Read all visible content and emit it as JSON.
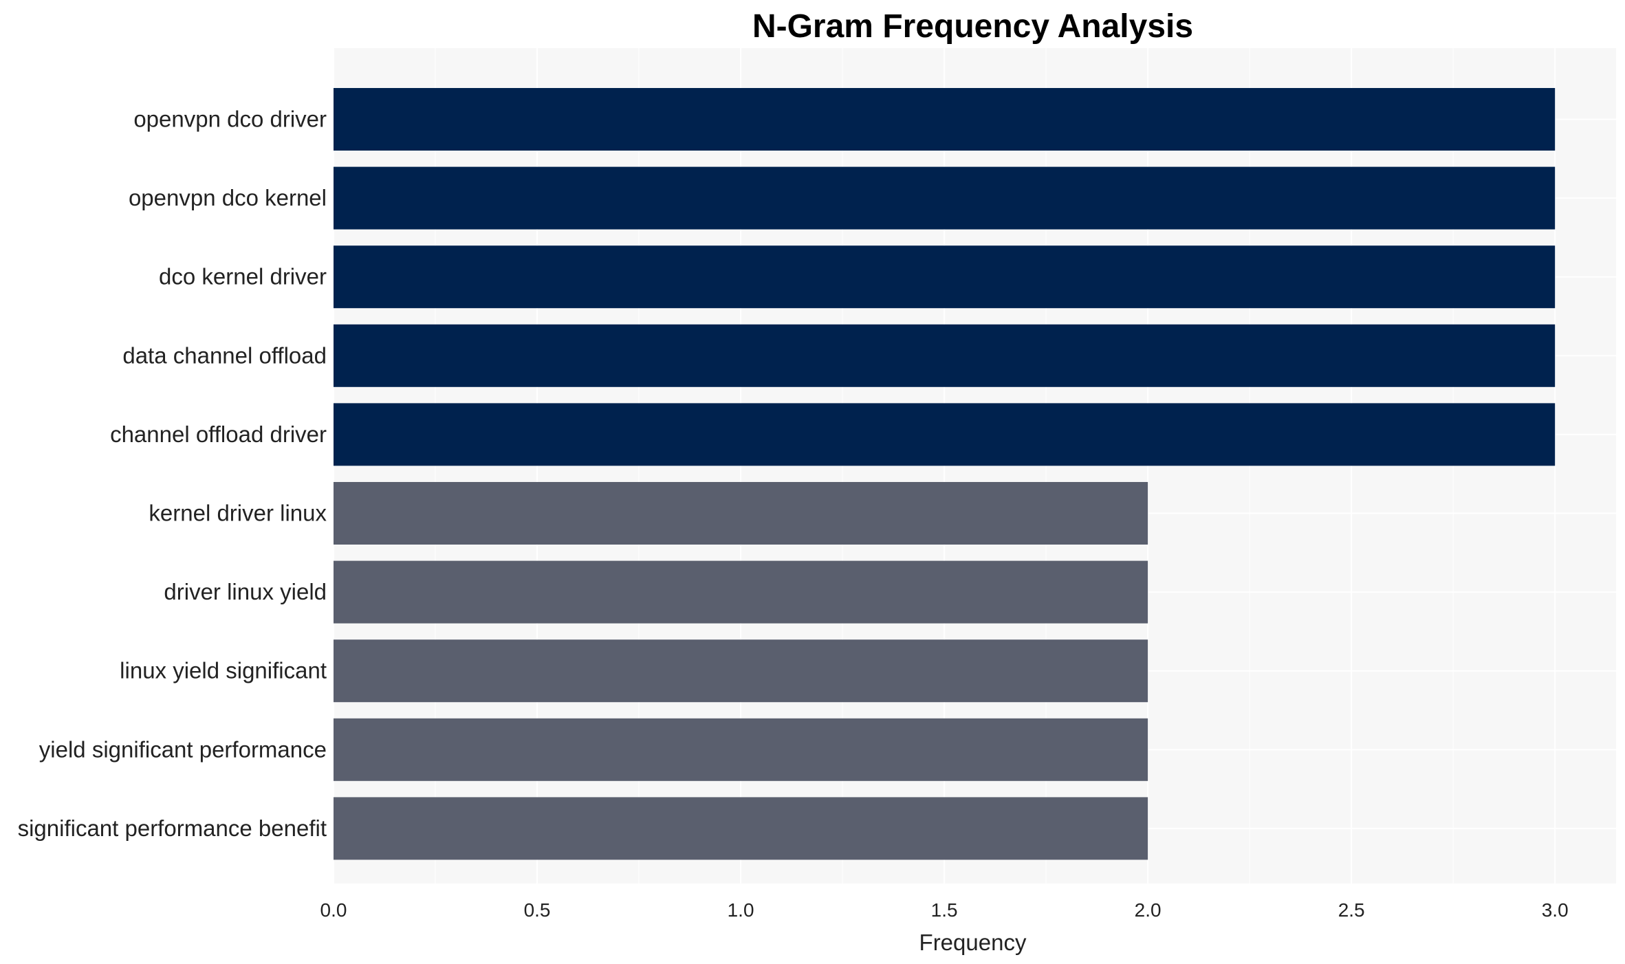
{
  "chart_data": {
    "type": "bar",
    "orientation": "horizontal",
    "title": "N-Gram Frequency Analysis",
    "xlabel": "Frequency",
    "ylabel": "",
    "xlim": [
      0,
      3.15
    ],
    "xticks": [
      "0.0",
      "0.5",
      "1.0",
      "1.5",
      "2.0",
      "2.5",
      "3.0"
    ],
    "grid": true,
    "categories": [
      "openvpn dco driver",
      "openvpn dco kernel",
      "dco kernel driver",
      "data channel offload",
      "channel offload driver",
      "kernel driver linux",
      "driver linux yield",
      "linux yield significant",
      "yield significant performance",
      "significant performance benefit"
    ],
    "values": [
      3,
      3,
      3,
      3,
      3,
      2,
      2,
      2,
      2,
      2
    ],
    "colors": {
      "high": "#00224e",
      "low": "#5a5f6e",
      "plot_background": "#f7f7f7",
      "grid": "#ffffff"
    }
  }
}
